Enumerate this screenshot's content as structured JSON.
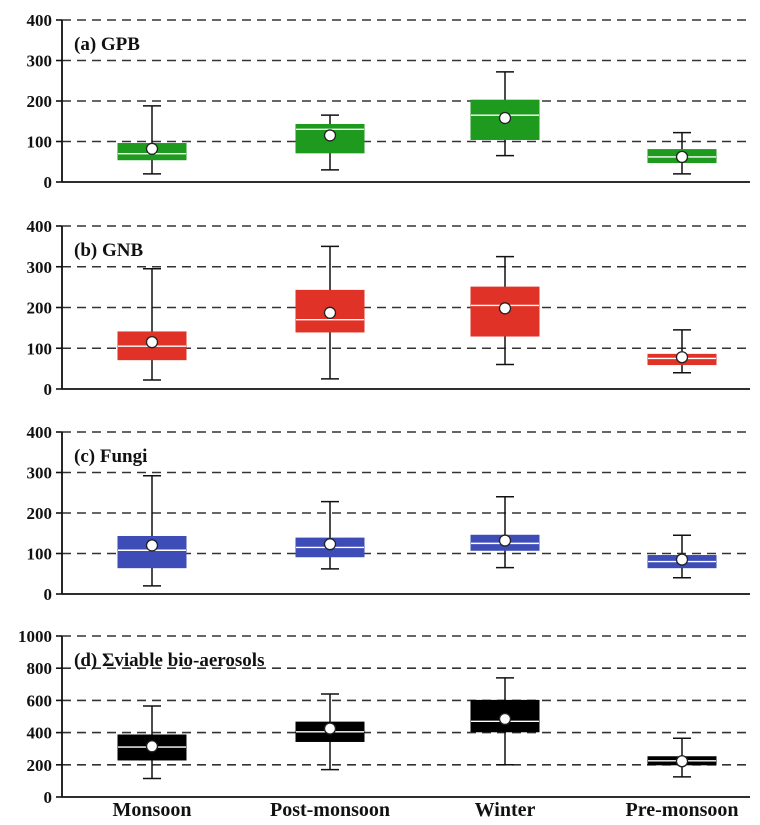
{
  "chart_data": [
    {
      "type": "box",
      "title": "(a) GPB",
      "color": "#1e9a1e",
      "ylim": [
        0,
        400
      ],
      "yticks": [
        "0",
        "100",
        "200",
        "300",
        "400"
      ],
      "grid": "dashed-horizontal",
      "categories": [
        "Monsoon",
        "Post-monsoon",
        "Winter",
        "Pre-monsoon"
      ],
      "boxes": [
        {
          "whisker_low": 20,
          "q1": 55,
          "median": 70,
          "q3": 95,
          "whisker_high": 188,
          "mean": 82
        },
        {
          "whisker_low": 30,
          "q1": 72,
          "median": 130,
          "q3": 142,
          "whisker_high": 165,
          "mean": 115
        },
        {
          "whisker_low": 65,
          "q1": 105,
          "median": 165,
          "q3": 202,
          "whisker_high": 272,
          "mean": 158
        },
        {
          "whisker_low": 20,
          "q1": 48,
          "median": 62,
          "q3": 80,
          "whisker_high": 122,
          "mean": 62
        }
      ]
    },
    {
      "type": "box",
      "title": "(b) GNB",
      "color": "#e03226",
      "ylim": [
        0,
        400
      ],
      "yticks": [
        "0",
        "100",
        "200",
        "300",
        "400"
      ],
      "grid": "dashed-horizontal",
      "categories": [
        "Monsoon",
        "Post-monsoon",
        "Winter",
        "Pre-monsoon"
      ],
      "boxes": [
        {
          "whisker_low": 22,
          "q1": 72,
          "median": 105,
          "q3": 140,
          "whisker_high": 295,
          "mean": 115
        },
        {
          "whisker_low": 25,
          "q1": 140,
          "median": 170,
          "q3": 242,
          "whisker_high": 350,
          "mean": 187
        },
        {
          "whisker_low": 60,
          "q1": 130,
          "median": 205,
          "q3": 250,
          "whisker_high": 325,
          "mean": 198
        },
        {
          "whisker_low": 40,
          "q1": 60,
          "median": 75,
          "q3": 85,
          "whisker_high": 145,
          "mean": 78
        }
      ]
    },
    {
      "type": "box",
      "title": "(c) Fungi",
      "color": "#3d4cb6",
      "ylim": [
        0,
        400
      ],
      "yticks": [
        "0",
        "100",
        "200",
        "300",
        "400"
      ],
      "grid": "dashed-horizontal",
      "categories": [
        "Monsoon",
        "Post-monsoon",
        "Winter",
        "Pre-monsoon"
      ],
      "boxes": [
        {
          "whisker_low": 20,
          "q1": 65,
          "median": 108,
          "q3": 142,
          "whisker_high": 292,
          "mean": 120
        },
        {
          "whisker_low": 62,
          "q1": 92,
          "median": 115,
          "q3": 138,
          "whisker_high": 228,
          "mean": 123
        },
        {
          "whisker_low": 65,
          "q1": 108,
          "median": 125,
          "q3": 145,
          "whisker_high": 240,
          "mean": 132
        },
        {
          "whisker_low": 40,
          "q1": 65,
          "median": 80,
          "q3": 95,
          "whisker_high": 145,
          "mean": 85
        }
      ]
    },
    {
      "type": "box",
      "title": "(d) Σviable bio-aerosols",
      "color": "#000000",
      "ylim": [
        0,
        1000
      ],
      "yticks": [
        "0",
        "200",
        "400",
        "600",
        "800",
        "1000"
      ],
      "grid": "dashed-horizontal",
      "categories": [
        "Monsoon",
        "Post-monsoon",
        "Winter",
        "Pre-monsoon"
      ],
      "boxes": [
        {
          "whisker_low": 115,
          "q1": 230,
          "median": 310,
          "q3": 385,
          "whisker_high": 565,
          "mean": 315
        },
        {
          "whisker_low": 170,
          "q1": 345,
          "median": 405,
          "q3": 465,
          "whisker_high": 640,
          "mean": 425
        },
        {
          "whisker_low": 200,
          "q1": 405,
          "median": 470,
          "q3": 600,
          "whisker_high": 740,
          "mean": 485
        },
        {
          "whisker_low": 125,
          "q1": 200,
          "median": 225,
          "q3": 250,
          "whisker_high": 365,
          "mean": 222
        }
      ]
    }
  ],
  "x_categories": [
    "Monsoon",
    "Post-monsoon",
    "Winter",
    "Pre-monsoon"
  ]
}
